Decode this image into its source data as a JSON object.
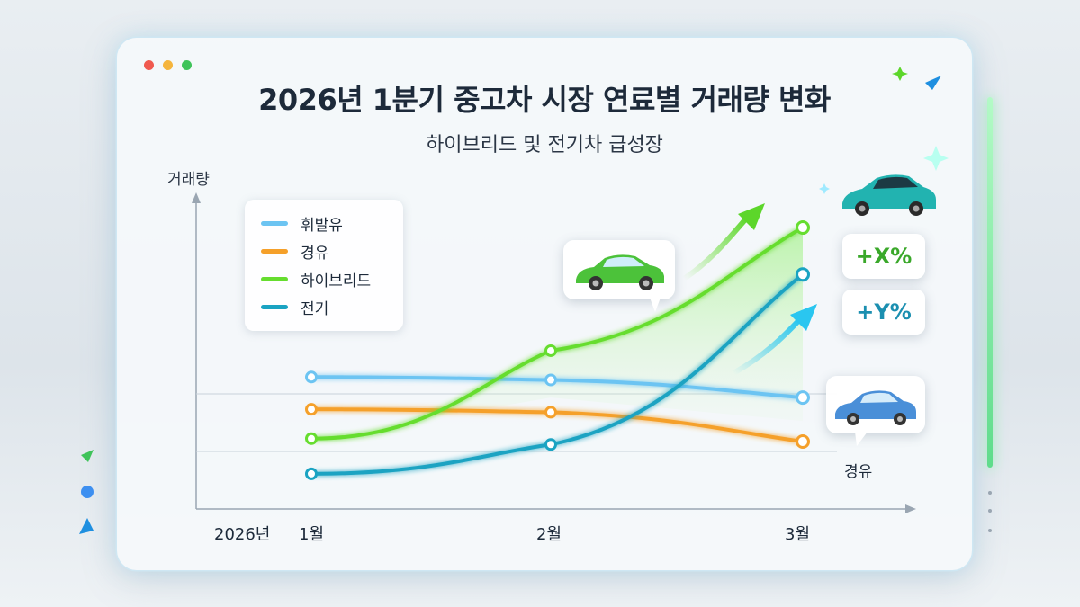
{
  "window": {
    "dots": [
      "#f05a4f",
      "#f5b53d",
      "#3fc35a"
    ]
  },
  "chart_data": {
    "type": "line",
    "title": "2026년 1분기 중고차 시장 연료별 거래량 변화",
    "subtitle": "하이브리드 및 전기차 급성장",
    "ylabel": "거래량",
    "xlabel": "",
    "year_label": "2026년",
    "categories": [
      "1월",
      "2월",
      "3월"
    ],
    "ylim": [
      0,
      100
    ],
    "grid": "horizontal",
    "legend_position": "top-left",
    "series": [
      {
        "name": "휘발유",
        "color": "#6cc4f2",
        "values": [
          45,
          44,
          38
        ]
      },
      {
        "name": "경유",
        "color": "#f5a02a",
        "values": [
          34,
          33,
          23
        ]
      },
      {
        "name": "하이브리드",
        "color": "#66dd2f",
        "values": [
          24,
          54,
          96
        ]
      },
      {
        "name": "전기",
        "color": "#1aa3c2",
        "values": [
          12,
          22,
          80
        ]
      }
    ],
    "annotations": {
      "hybrid_change": "+X%",
      "ev_change": "+Y%",
      "diesel_end_label": "경유"
    }
  }
}
